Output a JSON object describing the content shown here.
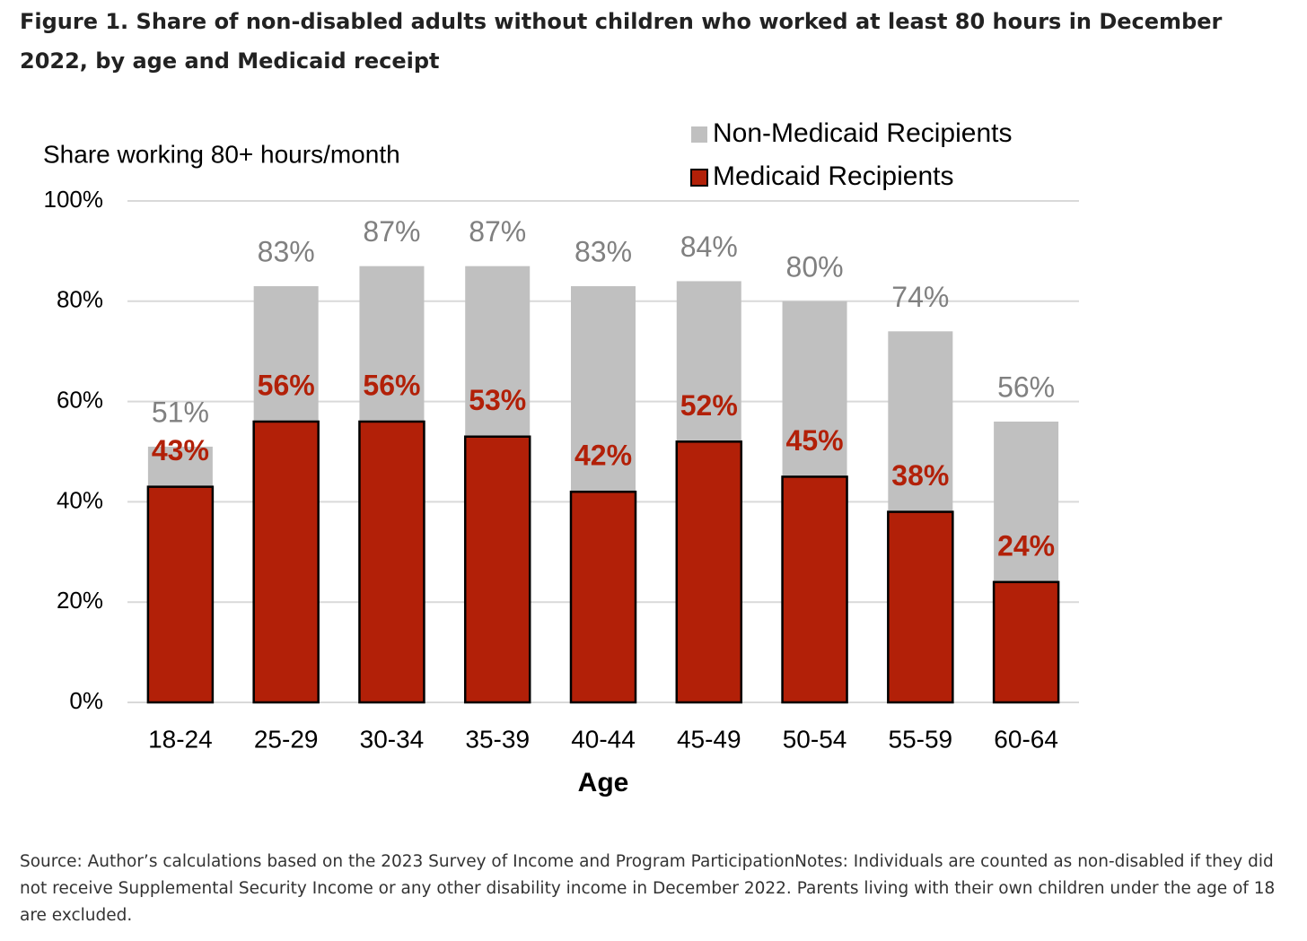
{
  "chart_data": {
    "type": "bar",
    "title": "Figure 1. Share of non-disabled adults without children who worked at least 80 hours in December 2022, by age and Medicaid receipt",
    "y_label": "Share working 80+ hours/month",
    "x_label": "Age",
    "categories": [
      "18-24",
      "25-29",
      "30-34",
      "35-39",
      "40-44",
      "45-49",
      "50-54",
      "55-59",
      "60-64"
    ],
    "series": [
      {
        "name": "Non-Medicaid Recipients",
        "color": "#c0c0c0",
        "values": [
          51,
          83,
          87,
          87,
          83,
          84,
          80,
          74,
          56
        ],
        "value_labels": [
          "51%",
          "83%",
          "87%",
          "87%",
          "83%",
          "84%",
          "80%",
          "74%",
          "56%"
        ]
      },
      {
        "name": "Medicaid Recipients",
        "color": "#b22008",
        "values": [
          43,
          56,
          56,
          53,
          42,
          52,
          45,
          38,
          24
        ],
        "value_labels": [
          "43%",
          "56%",
          "56%",
          "53%",
          "42%",
          "52%",
          "45%",
          "38%",
          "24%"
        ]
      }
    ],
    "ylim": [
      0,
      100
    ],
    "yticks": [
      {
        "value": 0,
        "label": "0%"
      },
      {
        "value": 20,
        "label": "20%"
      },
      {
        "value": 40,
        "label": "40%"
      },
      {
        "value": 60,
        "label": "60%"
      },
      {
        "value": 80,
        "label": "80%"
      },
      {
        "value": 100,
        "label": "100%"
      }
    ],
    "grid": true,
    "legend": "top-right",
    "source": "Source: Author’s calculations based on the 2023 Survey of Income and Program ParticipationNotes: Individuals are counted as non-disabled if they did not receive Supplemental Security Income or any other disability income in December 2022. Parents living with their own children under the age of 18 are excluded."
  }
}
